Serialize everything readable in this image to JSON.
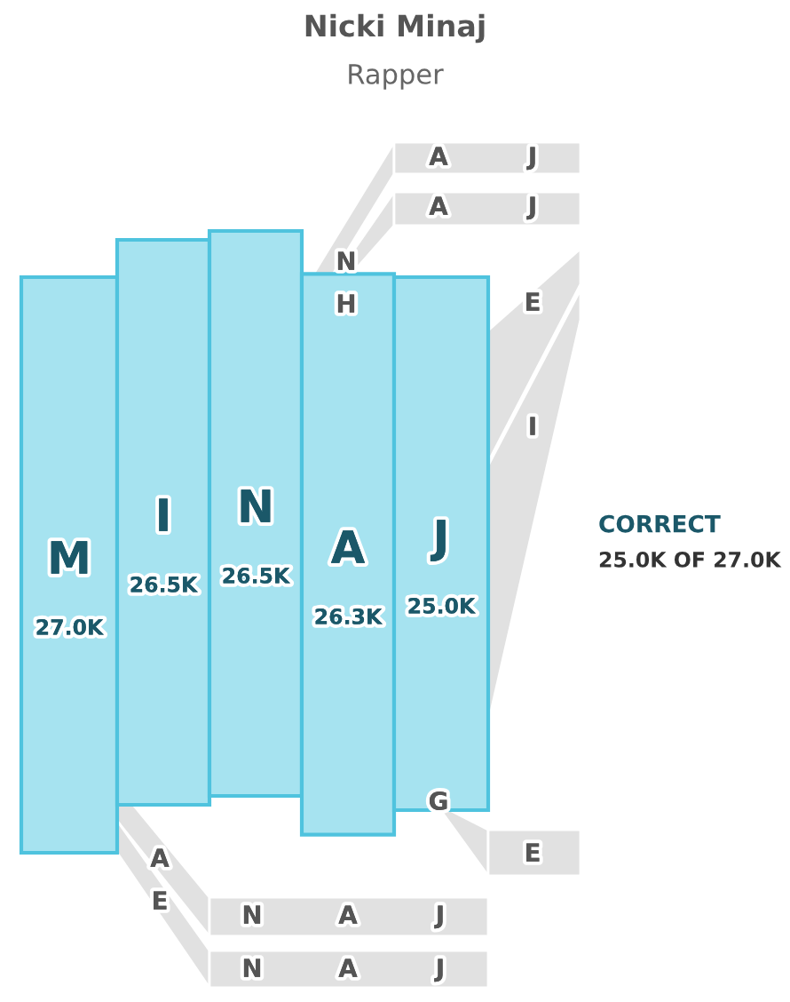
{
  "chart_data": {
    "type": "other",
    "title": "Nicki Minaj",
    "subtitle": "Rapper",
    "categories": [
      "M",
      "I",
      "N",
      "A",
      "J"
    ],
    "values": [
      27.0,
      26.5,
      26.5,
      26.3,
      25.0
    ],
    "value_labels": [
      "27.0K",
      "26.5K",
      "26.5K",
      "26.3K",
      "25.0K"
    ],
    "color": "#a6e3f0",
    "annotations": [
      "CORRECT",
      "25.0K OF 27.0K",
      "N",
      "H",
      "A",
      "J",
      "A",
      "J",
      "E",
      "I",
      "G",
      "E",
      "A",
      "E",
      "N",
      "A",
      "J",
      "N",
      "A",
      "J"
    ]
  }
}
